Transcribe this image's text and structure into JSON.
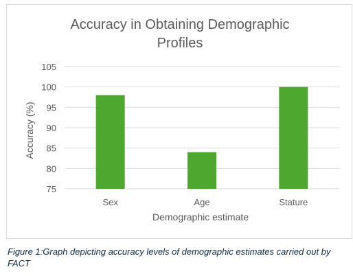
{
  "chart_data": {
    "type": "bar",
    "title_line1": "Accuracy in Obtaining Demographic",
    "title_line2": "Profiles",
    "categories": [
      "Sex",
      "Age",
      "Stature"
    ],
    "values": [
      98,
      84,
      100
    ],
    "xlabel": "Demographic estimate",
    "ylabel": "Accuracy (%)",
    "ylim": [
      75,
      105
    ],
    "yticks": [
      75,
      80,
      85,
      90,
      95,
      100,
      105
    ],
    "grid": "horizontal",
    "legend": "none",
    "bar_color": "#4ea72e",
    "grid_color": "#d9d9d9",
    "text_color": "#595959"
  },
  "caption": "Figure 1:Graph depicting accuracy levels of demographic estimates carried out by FACT"
}
